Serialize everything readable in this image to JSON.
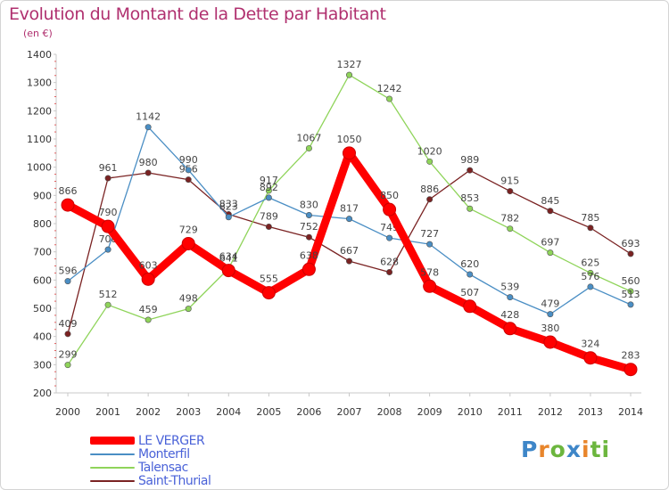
{
  "title": "Evolution du Montant de la Dette par Habitant",
  "subtitle": "(en €)",
  "logo": {
    "text": "Proxiti",
    "colors": [
      "#3e86c8",
      "#e8852b",
      "#6cb63e",
      "#3e86c8",
      "#e8852b",
      "#6cb63e",
      "#6cb63e"
    ]
  },
  "chart_data": {
    "type": "line",
    "x": [
      "2000",
      "2001",
      "2002",
      "2003",
      "2004",
      "2005",
      "2006",
      "2007",
      "2008",
      "2009",
      "2010",
      "2011",
      "2012",
      "2013",
      "2014"
    ],
    "ylim": [
      200,
      1400
    ],
    "yticks": [
      200,
      300,
      400,
      500,
      600,
      700,
      800,
      900,
      1000,
      1100,
      1200,
      1300,
      1400
    ],
    "grid": false,
    "legend_position": "bottom-left",
    "series": [
      {
        "name": "LE VERGER",
        "color": "#ff0000",
        "values": [
          866,
          790,
          603,
          729,
          634,
          555,
          638,
          1050,
          850,
          578,
          507,
          428,
          380,
          324,
          283
        ]
      },
      {
        "name": "Monterfil",
        "color": "#4a8ec4",
        "values": [
          596,
          708,
          1142,
          990,
          823,
          892,
          830,
          817,
          749,
          727,
          620,
          539,
          479,
          576,
          513
        ]
      },
      {
        "name": "Talensac",
        "color": "#8fd45a",
        "values": [
          299,
          512,
          459,
          498,
          641,
          917,
          1067,
          1327,
          1242,
          1020,
          853,
          782,
          697,
          625,
          560
        ]
      },
      {
        "name": "Saint-Thurial",
        "color": "#7a2222",
        "values": [
          409,
          961,
          980,
          956,
          833,
          789,
          752,
          667,
          628,
          886,
          989,
          915,
          845,
          785,
          693
        ]
      }
    ]
  }
}
